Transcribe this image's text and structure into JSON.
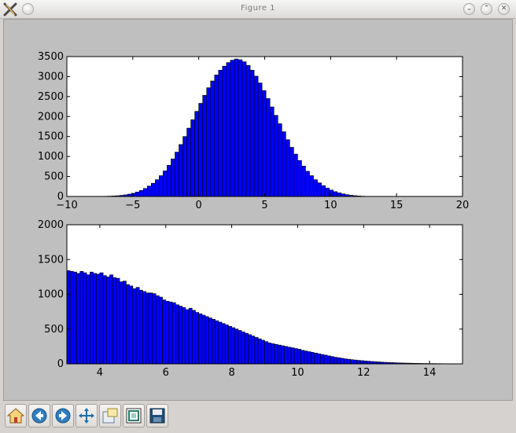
{
  "window": {
    "title": "Figure 1",
    "controls": [
      "minimize-icon",
      "maximize-icon",
      "close-icon"
    ]
  },
  "toolbar": {
    "buttons": [
      "home-icon",
      "back-arrow-icon",
      "forward-arrow-icon",
      "pan-move-icon",
      "zoom-rect-icon",
      "configure-subplots-icon",
      "save-figure-icon"
    ]
  },
  "chart_data": [
    {
      "type": "bar",
      "title": "",
      "xlim": [
        -10,
        20
      ],
      "ylim": [
        0,
        3500
      ],
      "xticks": [
        "−10",
        "−5",
        "0",
        "5",
        "10",
        "15",
        "20"
      ],
      "yticks": [
        "0",
        "500",
        "1000",
        "1500",
        "2000",
        "2500",
        "3000",
        "3500"
      ],
      "bar_color": "#0000ff",
      "bin_width": 0.3,
      "bins_start": -7.2,
      "values": [
        5,
        8,
        12,
        18,
        28,
        40,
        58,
        80,
        110,
        150,
        200,
        260,
        330,
        420,
        520,
        640,
        780,
        940,
        1110,
        1300,
        1500,
        1710,
        1920,
        2130,
        2330,
        2530,
        2720,
        2890,
        3040,
        3160,
        3260,
        3350,
        3410,
        3440,
        3420,
        3370,
        3280,
        3160,
        3010,
        2840,
        2650,
        2450,
        2240,
        2030,
        1820,
        1620,
        1420,
        1230,
        1060,
        900,
        760,
        630,
        520,
        420,
        340,
        270,
        210,
        160,
        120,
        90,
        65,
        45,
        30,
        20,
        12,
        7,
        4
      ]
    },
    {
      "type": "bar",
      "title": "",
      "xlim": [
        3,
        15
      ],
      "ylim": [
        0,
        2000
      ],
      "xticks": [
        "4",
        "6",
        "8",
        "10",
        "12",
        "14"
      ],
      "yticks": [
        "0",
        "500",
        "1000",
        "1500",
        "2000"
      ],
      "bar_color": "#0000ff",
      "bin_width": 0.1,
      "bins_start": 3,
      "values": [
        1340,
        1330,
        1320,
        1300,
        1330,
        1310,
        1280,
        1320,
        1300,
        1290,
        1310,
        1270,
        1250,
        1280,
        1240,
        1230,
        1180,
        1190,
        1140,
        1120,
        1080,
        1100,
        1060,
        1040,
        1020,
        1020,
        1010,
        980,
        960,
        920,
        900,
        890,
        880,
        850,
        830,
        810,
        780,
        800,
        770,
        740,
        720,
        700,
        680,
        660,
        640,
        620,
        600,
        580,
        560,
        540,
        520,
        500,
        480,
        460,
        440,
        420,
        400,
        380,
        360,
        340,
        320,
        300,
        290,
        280,
        270,
        260,
        250,
        240,
        230,
        220,
        210,
        195,
        185,
        175,
        165,
        155,
        145,
        135,
        125,
        115,
        105,
        95,
        88,
        80,
        72,
        66,
        60,
        55,
        50,
        46,
        42,
        38,
        34,
        31,
        28,
        25,
        22,
        20,
        18,
        16,
        14,
        12,
        11,
        10,
        9,
        8,
        7,
        6,
        5,
        5,
        4,
        4,
        3,
        3,
        2,
        2,
        2,
        1,
        1,
        1
      ]
    }
  ]
}
